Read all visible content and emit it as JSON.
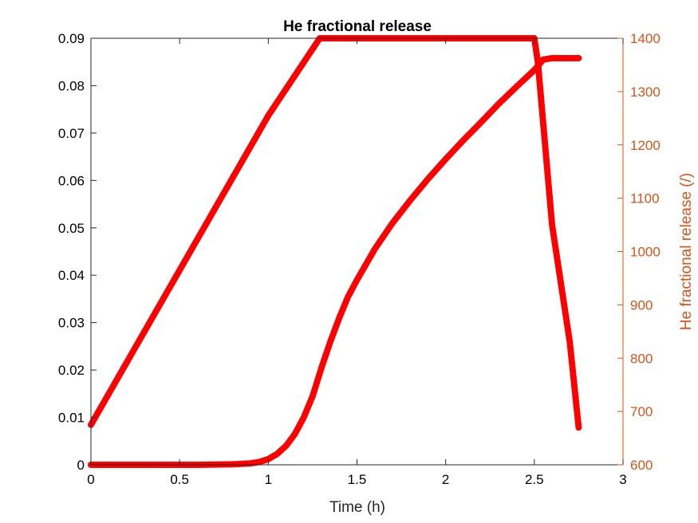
{
  "chart_data": {
    "type": "scatter",
    "title": "He fractional release",
    "xlabel": "Time (h)",
    "ylabel_left": "",
    "ylabel_right": "He fractional release (/)",
    "xlim": [
      0,
      3
    ],
    "ylim_left": [
      0,
      0.09
    ],
    "ylim_right": [
      600,
      1400
    ],
    "x_ticks": [
      "0",
      "0.5",
      "1",
      "1.5",
      "2",
      "2.5",
      "3"
    ],
    "y_left_ticks": [
      "0",
      "0.01",
      "0.02",
      "0.03",
      "0.04",
      "0.05",
      "0.06",
      "0.07",
      "0.08",
      "0.09"
    ],
    "y_right_ticks": [
      "600",
      "700",
      "800",
      "900",
      "1000",
      "1100",
      "1200",
      "1300",
      "1400"
    ],
    "grid": false,
    "colors": {
      "series": "#ff0000",
      "right_axis": "#d95319",
      "left_axis": "#262626"
    },
    "series": [
      {
        "axis": "left",
        "x": [
          0,
          0.2,
          0.4,
          0.6,
          0.8,
          0.9,
          0.95,
          1.0,
          1.05,
          1.1,
          1.15,
          1.2,
          1.25,
          1.3,
          1.35,
          1.4,
          1.45,
          1.5,
          1.6,
          1.7,
          1.8,
          1.9,
          2.0,
          2.1,
          2.2,
          2.3,
          2.4,
          2.5,
          2.55,
          2.6,
          2.7,
          2.75
        ],
        "y": [
          0,
          0,
          0,
          0,
          0.0001,
          0.0003,
          0.0006,
          0.0012,
          0.0023,
          0.004,
          0.0065,
          0.01,
          0.0145,
          0.0205,
          0.026,
          0.031,
          0.0355,
          0.039,
          0.0455,
          0.051,
          0.0558,
          0.0603,
          0.0645,
          0.0685,
          0.0723,
          0.0762,
          0.0798,
          0.0833,
          0.0855,
          0.0858,
          0.0858,
          0.0858
        ]
      },
      {
        "axis": "right",
        "x": [
          0,
          0.25,
          0.5,
          0.75,
          1.0,
          1.25,
          1.29,
          1.5,
          2.0,
          2.4,
          2.5,
          2.52,
          2.6,
          2.7,
          2.75
        ],
        "y": [
          675,
          820,
          965,
          1110,
          1255,
          1380,
          1400,
          1400,
          1400,
          1400,
          1400,
          1355,
          1050,
          830,
          670
        ]
      }
    ]
  }
}
